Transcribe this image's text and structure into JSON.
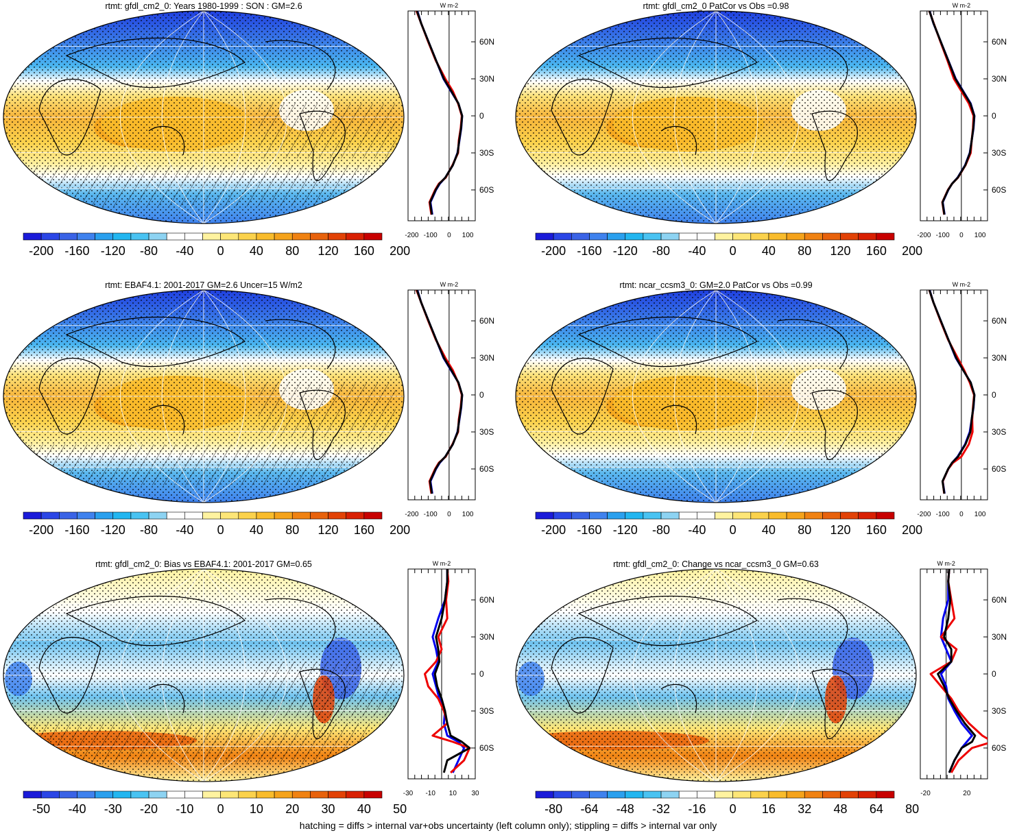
{
  "chart_data": [
    {
      "type": "heatmap",
      "title": "rtmt: gfdl_cm2_0: Years 1980-1999 : SON : GM=2.6",
      "colorbar": {
        "labels": [
          "-200",
          "-160",
          "-120",
          "-80",
          "-40",
          "0",
          "40",
          "80",
          "120",
          "160",
          "200"
        ],
        "range": [
          -220,
          220
        ]
      },
      "profile": {
        "unit": "W m-2",
        "xticks": [
          "-200",
          "-100",
          "0",
          "100"
        ],
        "xlim": [
          -220,
          140
        ],
        "lat_labels": [
          "60N",
          "30N",
          "0",
          "30S",
          "60S"
        ],
        "lat": [
          85,
          75,
          60,
          45,
          30,
          20,
          10,
          0,
          -10,
          -20,
          -30,
          -40,
          -50,
          -55,
          -60,
          -70,
          -80
        ],
        "series": [
          {
            "color": "#0000ee",
            "values": [
              -170,
              -150,
              -110,
              -70,
              -30,
              10,
              50,
              70,
              65,
              55,
              45,
              20,
              -20,
              -50,
              -70,
              -100,
              -90
            ]
          },
          {
            "color": "#ee0000",
            "values": [
              -175,
              -150,
              -112,
              -72,
              -20,
              20,
              48,
              68,
              62,
              52,
              48,
              18,
              -18,
              -55,
              -75,
              -105,
              -95
            ]
          },
          {
            "color": "#000000",
            "values": [
              -172,
              -150,
              -110,
              -70,
              -28,
              12,
              50,
              70,
              64,
              54,
              46,
              20,
              -20,
              -52,
              -72,
              -102,
              -92
            ]
          }
        ]
      }
    },
    {
      "type": "heatmap",
      "title": "rtmt: gfdl_cm2_0 PatCor vs Obs =0.98",
      "colorbar": {
        "labels": [
          "-200",
          "-160",
          "-120",
          "-80",
          "-40",
          "0",
          "40",
          "80",
          "120",
          "160",
          "200"
        ],
        "range": [
          -220,
          220
        ]
      },
      "profile": {
        "unit": "W m-2",
        "xticks": [
          "-200",
          "-100",
          "0",
          "100"
        ],
        "xlim": [
          -220,
          140
        ],
        "lat_labels": [
          "60N",
          "30N",
          "0",
          "30S",
          "60S"
        ],
        "lat": [
          85,
          75,
          60,
          45,
          30,
          20,
          10,
          0,
          -10,
          -20,
          -30,
          -40,
          -50,
          -55,
          -60,
          -70,
          -80
        ],
        "series": [
          {
            "color": "#0000ee",
            "values": [
              -170,
              -150,
              -110,
              -70,
              -30,
              10,
              50,
              70,
              65,
              55,
              45,
              20,
              -20,
              -50,
              -70,
              -100,
              -90
            ]
          },
          {
            "color": "#ee0000",
            "values": [
              -172,
              -148,
              -112,
              -75,
              -40,
              0,
              40,
              65,
              62,
              55,
              50,
              22,
              -18,
              -50,
              -72,
              -102,
              -92
            ]
          },
          {
            "color": "#000000",
            "values": [
              -171,
              -149,
              -110,
              -71,
              -32,
              8,
              48,
              69,
              64,
              55,
              46,
              21,
              -19,
              -50,
              -71,
              -101,
              -91
            ]
          }
        ]
      }
    },
    {
      "type": "heatmap",
      "title": "rtmt: EBAF4.1: 2001-2017 GM=2.6 Uncer=15 W/m2",
      "colorbar": {
        "labels": [
          "-200",
          "-160",
          "-120",
          "-80",
          "-40",
          "0",
          "40",
          "80",
          "120",
          "160",
          "200"
        ],
        "range": [
          -220,
          220
        ]
      },
      "profile": {
        "unit": "W m-2",
        "xticks": [
          "-200",
          "-100",
          "0",
          "100"
        ],
        "xlim": [
          -220,
          140
        ],
        "lat_labels": [
          "60N",
          "30N",
          "0",
          "30S",
          "60S"
        ],
        "lat": [
          85,
          75,
          60,
          45,
          30,
          20,
          10,
          0,
          -10,
          -20,
          -30,
          -40,
          -50,
          -55,
          -60,
          -70,
          -80
        ],
        "series": [
          {
            "color": "#0000ee",
            "values": [
              -170,
              -150,
              -110,
              -70,
              -30,
              10,
              50,
              70,
              65,
              55,
              45,
              20,
              -20,
              -50,
              -70,
              -100,
              -90
            ]
          },
          {
            "color": "#ee0000",
            "values": [
              -175,
              -150,
              -112,
              -72,
              -20,
              20,
              48,
              68,
              62,
              52,
              48,
              18,
              -18,
              -55,
              -75,
              -105,
              -95
            ]
          },
          {
            "color": "#000000",
            "values": [
              -172,
              -150,
              -110,
              -70,
              -28,
              12,
              50,
              70,
              64,
              54,
              46,
              20,
              -20,
              -52,
              -72,
              -102,
              -92
            ]
          }
        ]
      }
    },
    {
      "type": "heatmap",
      "title": "rtmt: ncar_ccsm3_0: GM=2.0 PatCor vs Obs =0.99",
      "colorbar": {
        "labels": [
          "-200",
          "-160",
          "-120",
          "-80",
          "-40",
          "0",
          "40",
          "80",
          "120",
          "160",
          "200"
        ],
        "range": [
          -220,
          220
        ]
      },
      "profile": {
        "unit": "W m-2",
        "xticks": [
          "-200",
          "-100",
          "0",
          "100"
        ],
        "xlim": [
          -220,
          140
        ],
        "lat_labels": [
          "60N",
          "30N",
          "0",
          "30S",
          "60S"
        ],
        "lat": [
          85,
          75,
          60,
          45,
          30,
          20,
          10,
          0,
          -10,
          -20,
          -30,
          -40,
          -50,
          -55,
          -60,
          -70,
          -80
        ],
        "series": [
          {
            "color": "#0000ee",
            "values": [
              -170,
              -150,
              -110,
              -70,
              -30,
              10,
              50,
              70,
              65,
              55,
              45,
              20,
              -20,
              -50,
              -70,
              -100,
              -90
            ]
          },
          {
            "color": "#ee0000",
            "values": [
              -172,
              -150,
              -112,
              -72,
              -20,
              15,
              45,
              68,
              62,
              58,
              60,
              40,
              0,
              -45,
              -70,
              -100,
              -92
            ]
          },
          {
            "color": "#000000",
            "values": [
              -171,
              -150,
              -110,
              -70,
              -28,
              10,
              50,
              70,
              64,
              55,
              48,
              22,
              -18,
              -50,
              -71,
              -101,
              -91
            ]
          }
        ]
      }
    },
    {
      "type": "heatmap",
      "title": "rtmt: gfdl_cm2_0: Bias vs EBAF4.1: 2001-2017  GM=0.65",
      "colorbar": {
        "labels": [
          "-50",
          "-40",
          "-30",
          "-20",
          "-10",
          "0",
          "10",
          "20",
          "30",
          "40",
          "50"
        ],
        "range": [
          -55,
          55
        ]
      },
      "profile": {
        "unit": "W m-2",
        "xticks": [
          "-30",
          "-10",
          "10",
          "30"
        ],
        "xlim": [
          -30,
          30
        ],
        "lat_labels": [
          "60N",
          "30N",
          "0",
          "30S",
          "60S"
        ],
        "lat": [
          85,
          75,
          60,
          45,
          30,
          20,
          10,
          0,
          -10,
          -20,
          -30,
          -40,
          -50,
          -55,
          -60,
          -70,
          -80
        ],
        "series": [
          {
            "color": "#0000ee",
            "values": [
              5,
              5,
              3,
              -3,
              -8,
              -5,
              -3,
              -8,
              -5,
              -2,
              3,
              2,
              5,
              15,
              20,
              15,
              10
            ]
          },
          {
            "color": "#ee0000",
            "values": [
              5,
              6,
              4,
              5,
              -3,
              0,
              -5,
              -15,
              -12,
              -3,
              2,
              5,
              -8,
              10,
              25,
              20,
              8
            ]
          },
          {
            "color": "#000000",
            "values": [
              5,
              5,
              3,
              0,
              -5,
              -3,
              -2,
              -6,
              -4,
              0,
              3,
              5,
              8,
              18,
              25,
              5,
              2
            ]
          }
        ]
      }
    },
    {
      "type": "heatmap",
      "title": "rtmt: gfdl_cm2_0: Change vs ncar_ccsm3_0 GM=0.63",
      "colorbar": {
        "labels": [
          "-80",
          "-64",
          "-48",
          "-32",
          "-16",
          "0",
          "16",
          "32",
          "48",
          "64",
          "80"
        ],
        "range": [
          -88,
          88
        ]
      },
      "profile": {
        "unit": "W m-2",
        "xticks": [
          "-20",
          "20"
        ],
        "xlim": [
          -25,
          40
        ],
        "lat_labels": [
          "60N",
          "30N",
          "0",
          "30S",
          "60S"
        ],
        "lat": [
          85,
          75,
          60,
          45,
          30,
          20,
          10,
          0,
          -10,
          -20,
          -30,
          -40,
          -50,
          -55,
          -60,
          -70,
          -80
        ],
        "series": [
          {
            "color": "#0000ee",
            "values": [
              3,
              2,
              2,
              -3,
              -5,
              0,
              5,
              -5,
              0,
              2,
              8,
              15,
              25,
              20,
              15,
              8,
              3
            ]
          },
          {
            "color": "#ee0000",
            "values": [
              3,
              2,
              5,
              8,
              -5,
              10,
              5,
              -15,
              -5,
              5,
              12,
              22,
              35,
              45,
              25,
              12,
              5
            ]
          },
          {
            "color": "#000000",
            "values": [
              3,
              2,
              4,
              2,
              -2,
              5,
              5,
              -8,
              -2,
              3,
              10,
              18,
              28,
              25,
              15,
              8,
              3
            ]
          }
        ]
      }
    }
  ],
  "footer": "hatching = diffs > internal var+obs uncertainty (left column only); stippling = diffs > internal var only",
  "colors": {
    "palette": [
      "#1b1bd9",
      "#2b46e6",
      "#3a63e6",
      "#3f82ee",
      "#2aa0ee",
      "#22b6f0",
      "#49c3f2",
      "#8dd3f2",
      "#ffffff",
      "#ffffff",
      "#fff3a0",
      "#fde677",
      "#fbd24c",
      "#f9bc2c",
      "#f5a31b",
      "#f08212",
      "#e8620c",
      "#e24206",
      "#d92003",
      "#c80000"
    ]
  }
}
